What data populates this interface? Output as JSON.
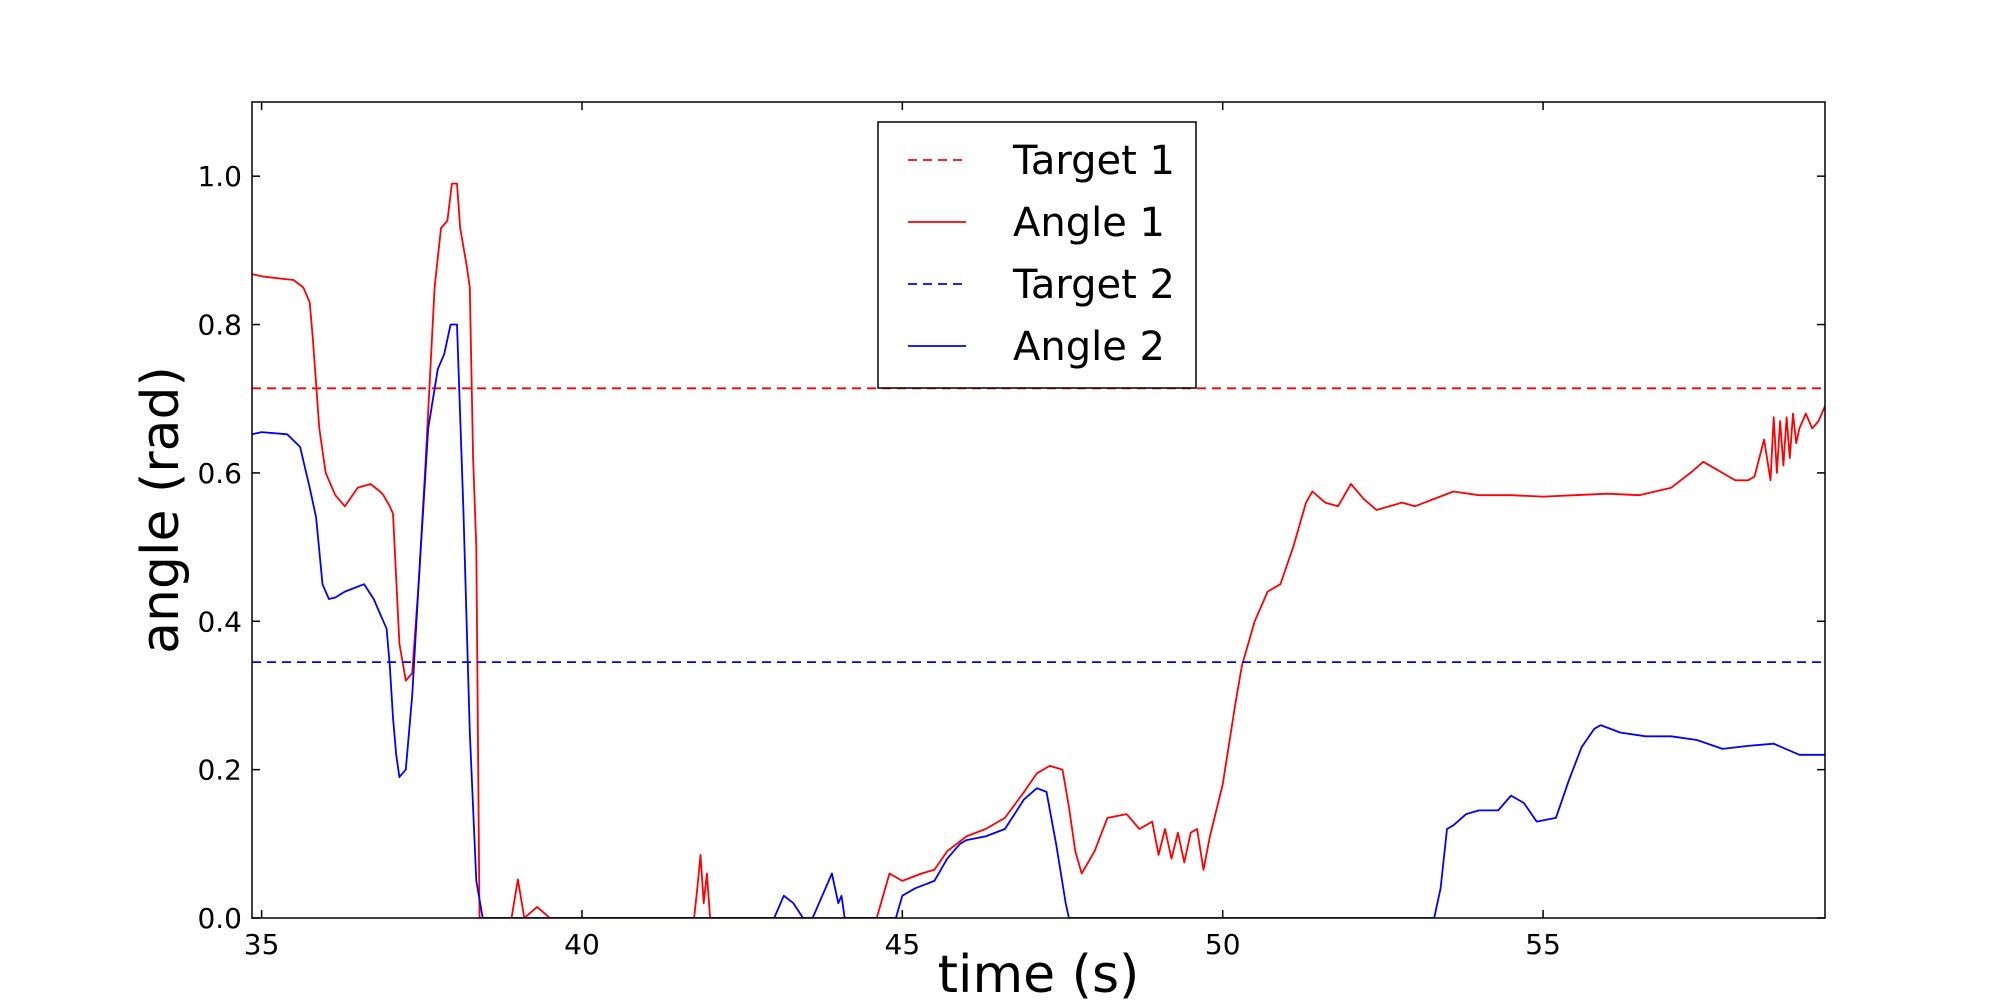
{
  "chart_data": {
    "type": "line",
    "title": "",
    "xlabel": "time (s)",
    "ylabel": "angle (rad)",
    "xlim": [
      34.85,
      59.4
    ],
    "ylim": [
      0.0,
      1.1
    ],
    "xticks": [
      35,
      40,
      45,
      50,
      55
    ],
    "yticks": [
      0.0,
      0.2,
      0.4,
      0.6,
      0.8,
      1.0
    ],
    "xtick_labels": [
      "35",
      "40",
      "45",
      "50",
      "55"
    ],
    "ytick_labels": [
      "0.0",
      "0.2",
      "0.4",
      "0.6",
      "0.8",
      "1.0"
    ],
    "grid": false,
    "legend_position": "top-center",
    "series": [
      {
        "name": "Target 1",
        "color": "#ff0000",
        "style": "dashed",
        "x": [
          34.85,
          59.4
        ],
        "y": [
          0.714,
          0.714
        ]
      },
      {
        "name": "Angle 1",
        "color": "#ff0000",
        "style": "solid",
        "x": [
          34.85,
          35.0,
          35.3,
          35.5,
          35.65,
          35.75,
          35.8,
          35.9,
          36.0,
          36.15,
          36.3,
          36.5,
          36.7,
          36.85,
          36.9,
          37.0,
          37.05,
          37.15,
          37.25,
          37.35,
          37.45,
          37.55,
          37.7,
          37.8,
          37.9,
          37.97,
          38.05,
          38.1,
          38.2,
          38.25,
          38.3,
          38.35,
          38.4,
          38.9,
          39.0,
          39.1,
          39.3,
          39.5,
          41.75,
          41.8,
          41.85,
          41.9,
          41.95,
          42.0,
          42.05,
          44.6,
          44.8,
          45.0,
          45.3,
          45.5,
          45.7,
          46.0,
          46.3,
          46.6,
          46.9,
          47.1,
          47.3,
          47.5,
          47.6,
          47.7,
          47.8,
          48.0,
          48.2,
          48.5,
          48.7,
          48.9,
          49.0,
          49.1,
          49.2,
          49.3,
          49.4,
          49.5,
          49.6,
          49.7,
          49.8,
          50.0,
          50.2,
          50.3,
          50.5,
          50.7,
          50.9,
          51.1,
          51.3,
          51.4,
          51.6,
          51.8,
          52.0,
          52.2,
          52.4,
          52.6,
          52.8,
          53.0,
          53.3,
          53.6,
          54.0,
          54.5,
          55.0,
          55.5,
          56.0,
          56.5,
          57.0,
          57.3,
          57.5,
          57.7,
          57.9,
          58.0,
          58.2,
          58.3,
          58.45,
          58.55,
          58.6,
          58.65,
          58.7,
          58.75,
          58.8,
          58.85,
          58.9,
          58.95,
          59.0,
          59.1,
          59.2,
          59.3,
          59.4
        ],
        "y": [
          0.868,
          0.865,
          0.862,
          0.86,
          0.85,
          0.83,
          0.78,
          0.66,
          0.6,
          0.57,
          0.555,
          0.58,
          0.585,
          0.575,
          0.57,
          0.555,
          0.545,
          0.37,
          0.32,
          0.33,
          0.45,
          0.6,
          0.85,
          0.93,
          0.94,
          0.99,
          0.99,
          0.93,
          0.88,
          0.85,
          0.62,
          0.5,
          0.0,
          0.0,
          0.052,
          0.0,
          0.015,
          0.0,
          0.0,
          0.04,
          0.085,
          0.02,
          0.06,
          0.0,
          0.0,
          0.0,
          0.06,
          0.05,
          0.06,
          0.065,
          0.09,
          0.11,
          0.12,
          0.135,
          0.17,
          0.195,
          0.205,
          0.2,
          0.15,
          0.09,
          0.06,
          0.09,
          0.135,
          0.14,
          0.12,
          0.13,
          0.085,
          0.12,
          0.08,
          0.115,
          0.075,
          0.115,
          0.12,
          0.065,
          0.11,
          0.18,
          0.29,
          0.34,
          0.4,
          0.44,
          0.45,
          0.5,
          0.56,
          0.575,
          0.56,
          0.555,
          0.585,
          0.565,
          0.55,
          0.555,
          0.56,
          0.555,
          0.565,
          0.575,
          0.57,
          0.57,
          0.568,
          0.57,
          0.572,
          0.57,
          0.58,
          0.6,
          0.615,
          0.605,
          0.595,
          0.59,
          0.59,
          0.595,
          0.645,
          0.59,
          0.675,
          0.6,
          0.67,
          0.61,
          0.675,
          0.62,
          0.68,
          0.64,
          0.66,
          0.68,
          0.66,
          0.67,
          0.69
        ]
      },
      {
        "name": "Target 2",
        "color": "#0000ff",
        "style": "dashed",
        "x": [
          34.85,
          59.4
        ],
        "y": [
          0.345,
          0.345
        ]
      },
      {
        "name": "Angle 2",
        "color": "#0000ff",
        "style": "solid",
        "x": [
          34.85,
          35.0,
          35.4,
          35.6,
          35.75,
          35.85,
          35.95,
          36.05,
          36.15,
          36.3,
          36.6,
          36.75,
          36.85,
          36.95,
          37.0,
          37.05,
          37.1,
          37.15,
          37.25,
          37.35,
          37.45,
          37.6,
          37.75,
          37.85,
          37.95,
          38.05,
          38.15,
          38.25,
          38.35,
          38.45,
          43.0,
          43.15,
          43.3,
          43.45,
          43.6,
          43.75,
          43.9,
          44.0,
          44.05,
          44.1,
          44.9,
          45.0,
          45.2,
          45.5,
          45.7,
          45.9,
          46.0,
          46.3,
          46.6,
          46.9,
          47.1,
          47.25,
          47.4,
          47.55,
          47.6,
          53.3,
          53.4,
          53.5,
          53.6,
          53.8,
          54.0,
          54.3,
          54.5,
          54.7,
          54.9,
          55.2,
          55.4,
          55.6,
          55.8,
          55.9,
          56.2,
          56.6,
          57.0,
          57.4,
          57.8,
          58.2,
          58.6,
          59.0,
          59.4
        ],
        "y": [
          0.652,
          0.655,
          0.652,
          0.635,
          0.58,
          0.54,
          0.45,
          0.43,
          0.432,
          0.44,
          0.45,
          0.43,
          0.41,
          0.39,
          0.34,
          0.27,
          0.22,
          0.19,
          0.2,
          0.3,
          0.45,
          0.66,
          0.74,
          0.76,
          0.8,
          0.8,
          0.55,
          0.25,
          0.05,
          0.0,
          0.0,
          0.03,
          0.02,
          0.0,
          0.0,
          0.03,
          0.06,
          0.02,
          0.03,
          0.0,
          0.0,
          0.03,
          0.04,
          0.05,
          0.08,
          0.1,
          0.105,
          0.11,
          0.12,
          0.16,
          0.175,
          0.17,
          0.1,
          0.02,
          0.0,
          0.0,
          0.04,
          0.12,
          0.125,
          0.14,
          0.145,
          0.145,
          0.165,
          0.155,
          0.13,
          0.135,
          0.185,
          0.23,
          0.255,
          0.26,
          0.25,
          0.245,
          0.245,
          0.24,
          0.228,
          0.232,
          0.235,
          0.22,
          0.22
        ]
      }
    ]
  }
}
